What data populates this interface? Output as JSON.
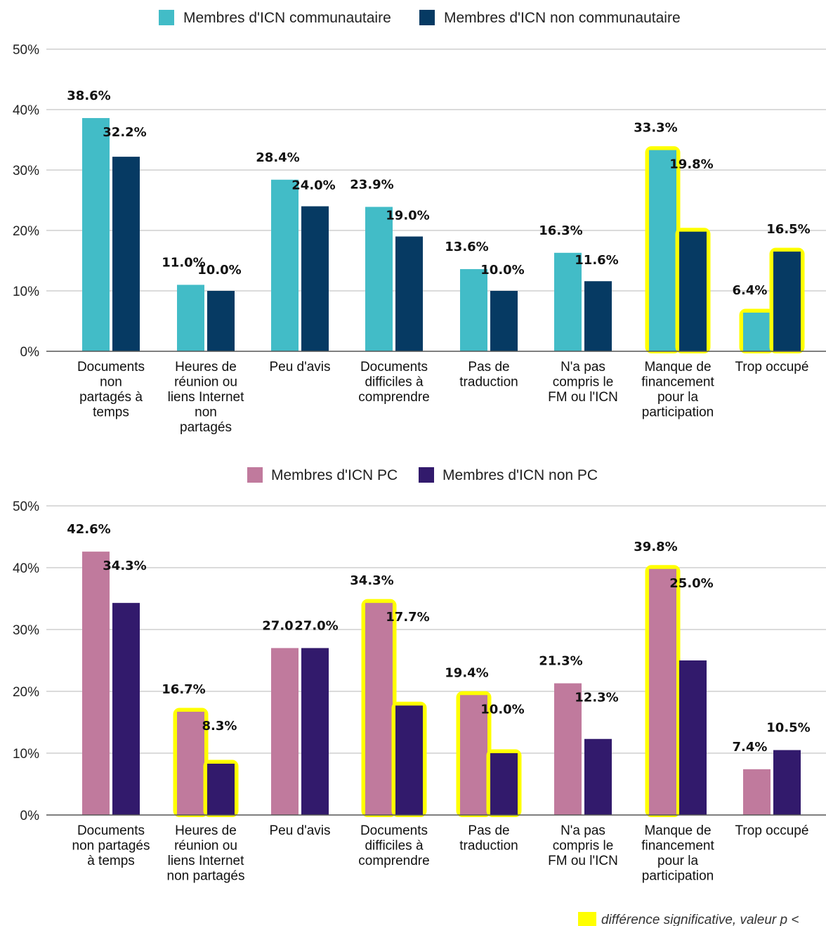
{
  "chart_data": [
    {
      "type": "bar",
      "categories": [
        [
          "Documents",
          "non",
          "partagés à",
          "temps"
        ],
        [
          "Heures de",
          "réunion ou",
          "liens Internet",
          "non",
          "partagés"
        ],
        [
          "Peu d'avis"
        ],
        [
          "Documents",
          "difficiles à",
          "comprendre"
        ],
        [
          "Pas de",
          "traduction"
        ],
        [
          "N'a pas",
          "compris le",
          "FM ou l'ICN"
        ],
        [
          "Manque de",
          "financement",
          "pour la",
          "participation"
        ],
        [
          "Trop occupé"
        ]
      ],
      "series": [
        {
          "name": "Membres d'ICN communautaire",
          "color": "#42bcc7",
          "values": [
            38.6,
            11.0,
            28.4,
            23.9,
            13.6,
            16.3,
            33.3,
            6.4
          ],
          "labels": [
            "38.6%",
            "11.0%",
            "28.4%",
            "23.9%",
            "13.6%",
            "16.3%",
            "33.3%",
            "6.4%"
          ],
          "highlighted": [
            false,
            false,
            false,
            false,
            false,
            false,
            true,
            true
          ]
        },
        {
          "name": "Membres d'ICN non communautaire",
          "color": "#063a63",
          "values": [
            32.2,
            10.0,
            24.0,
            19.0,
            10.0,
            11.6,
            19.8,
            16.5
          ],
          "labels": [
            "32.2%",
            "10.0%",
            "24.0%",
            "19.0%",
            "10.0%",
            "11.6%",
            "19.8%",
            "16.5%"
          ],
          "highlighted": [
            false,
            false,
            false,
            false,
            false,
            false,
            true,
            true
          ]
        }
      ],
      "y_ticks": [
        "0%",
        "10%",
        "20%",
        "30%",
        "40%",
        "50%"
      ],
      "ylim": [
        0,
        50
      ],
      "grid": true,
      "legend_position": "top-center"
    },
    {
      "type": "bar",
      "categories": [
        [
          "Documents",
          "non partagés",
          "à temps"
        ],
        [
          "Heures de",
          "réunion ou",
          "liens Internet",
          "non partagés"
        ],
        [
          "Peu d'avis"
        ],
        [
          "Documents",
          "difficiles à",
          "comprendre"
        ],
        [
          "Pas de",
          "traduction"
        ],
        [
          "N'a pas",
          "compris le",
          "FM ou l'ICN"
        ],
        [
          "Manque de",
          "financement",
          "pour la",
          "participation"
        ],
        [
          "Trop occupé"
        ]
      ],
      "series": [
        {
          "name": "Membres d'ICN PC",
          "color": "#c07a9d",
          "values": [
            42.6,
            16.7,
            27.0,
            34.3,
            19.4,
            21.3,
            39.8,
            7.4
          ],
          "labels": [
            "42.6%",
            "16.7%",
            "27.0",
            "34.3%",
            "19.4%",
            "21.3%",
            "39.8%",
            "7.4%"
          ],
          "highlighted": [
            false,
            true,
            false,
            true,
            true,
            false,
            true,
            false
          ]
        },
        {
          "name": "Membres d'ICN non PC",
          "color": "#321a6c",
          "values": [
            34.3,
            8.3,
            27.0,
            17.7,
            10.0,
            12.3,
            25.0,
            10.5
          ],
          "labels": [
            "34.3%",
            "8.3%",
            "27.0%",
            "17.7%",
            "10.0%",
            "12.3%",
            "25.0%",
            "10.5%"
          ],
          "highlighted": [
            false,
            true,
            false,
            true,
            true,
            false,
            false,
            false
          ]
        }
      ],
      "y_ticks": [
        "0%",
        "10%",
        "20%",
        "30%",
        "40%",
        "50%"
      ],
      "ylim": [
        0,
        50
      ],
      "grid": true,
      "legend_position": "top-center"
    }
  ],
  "highlight": {
    "color": "#ffff00",
    "note": "différence significative, valeur p <"
  }
}
